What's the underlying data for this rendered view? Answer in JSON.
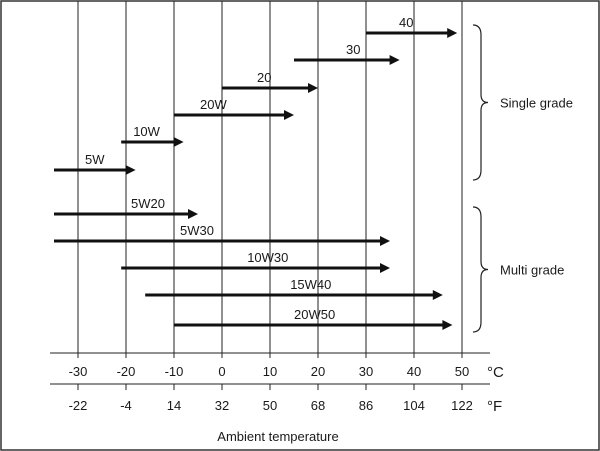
{
  "chart_data": {
    "type": "range-arrows",
    "title": "",
    "xlabel": "Ambient temperature",
    "celsius_unit": "°C",
    "fahrenheit_unit": "°F",
    "celsius_ticks": [
      -30,
      -20,
      -10,
      0,
      10,
      20,
      30,
      40,
      50
    ],
    "fahrenheit_ticks": [
      -22,
      -4,
      14,
      32,
      50,
      68,
      86,
      104,
      122
    ],
    "xlim_celsius": [
      -36,
      56
    ],
    "grid": true,
    "groups": [
      {
        "name": "Single grade",
        "series": [
          "40",
          "30",
          "20",
          "20W",
          "10W",
          "5W"
        ]
      },
      {
        "name": "Multi grade",
        "series": [
          "5W20",
          "5W30",
          "10W30",
          "15W40",
          "20W50"
        ]
      }
    ],
    "series": [
      {
        "name": "40",
        "from_c": 30,
        "to_c": 49
      },
      {
        "name": "30",
        "from_c": 15,
        "to_c": 37
      },
      {
        "name": "20",
        "from_c": 0,
        "to_c": 20
      },
      {
        "name": "20W",
        "from_c": -10,
        "to_c": 15
      },
      {
        "name": "10W",
        "from_c": -21,
        "to_c": -8
      },
      {
        "name": "5W",
        "from_c": -35,
        "to_c": -18
      },
      {
        "name": "5W20",
        "from_c": -35,
        "to_c": -5
      },
      {
        "name": "5W30",
        "from_c": -35,
        "to_c": 35
      },
      {
        "name": "10W30",
        "from_c": -21,
        "to_c": 35
      },
      {
        "name": "15W40",
        "from_c": -16,
        "to_c": 46
      },
      {
        "name": "20W50",
        "from_c": -10,
        "to_c": 48
      }
    ]
  }
}
